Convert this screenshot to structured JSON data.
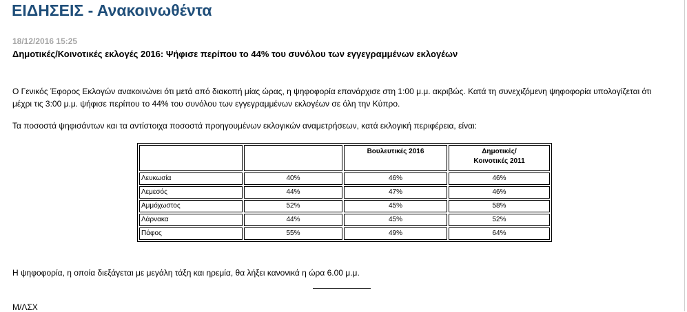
{
  "page": {
    "title": "ΕΙΔΗΣΕΙΣ - Ανακοινωθέντα"
  },
  "article": {
    "timestamp": "18/12/2016 15:25",
    "headline": "Δημοτικές/Κοινοτικές εκλογές 2016: Ψήφισε περίπου το 44% του συνόλου των εγγεγραμμένων εκλογέων",
    "paragraph1_line1": "Ο Γενικός Έφορος Εκλογών ανακοινώνει ότι μετά από διακοπή μίας ώρας, η ψηφοφορία επανάρχισε στη 1:00 μ.μ. ακριβώς. Κατά τη συνεχιζόμενη ψηφοφορία υπολογίζεται ότι",
    "paragraph1_line2": "μέχρι τις 3:00 μ.μ. ψήφισε περίπου το 44% του συνόλου των εγγεγραμμένων εκλογέων σε όλη την Κύπρο.",
    "paragraph2": "Τα ποσοστά ψηφισάντων και τα αντίστοιχα ποσοστά προηγουμένων εκλογικών αναμετρήσεων, κατά εκλογική περιφέρεια, είναι:",
    "paragraph3": "Η ψηφοφορία, η οποία διεξάγεται με μεγάλη τάξη και ηρεμία, θα λήξει κανονικά η ώρα 6.00 μ.μ.",
    "signature": "Μ/ΛΣΧ"
  },
  "table": {
    "headers": [
      "",
      "",
      "Βουλευτικές 2016",
      "Δημοτικές/\nΚοινοτικές 2011"
    ],
    "rows": [
      {
        "district": "Λευκωσία",
        "current": "40%",
        "parl2016": "46%",
        "local2011": "46%"
      },
      {
        "district": "Λεμεσός",
        "current": "44%",
        "parl2016": "47%",
        "local2011": "46%"
      },
      {
        "district": "Αμμόχωστος",
        "current": "52%",
        "parl2016": "45%",
        "local2011": "58%"
      },
      {
        "district": "Λάρνακα",
        "current": "44%",
        "parl2016": "45%",
        "local2011": "52%"
      },
      {
        "district": "Πάφος",
        "current": "55%",
        "parl2016": "49%",
        "local2011": "64%"
      }
    ]
  }
}
